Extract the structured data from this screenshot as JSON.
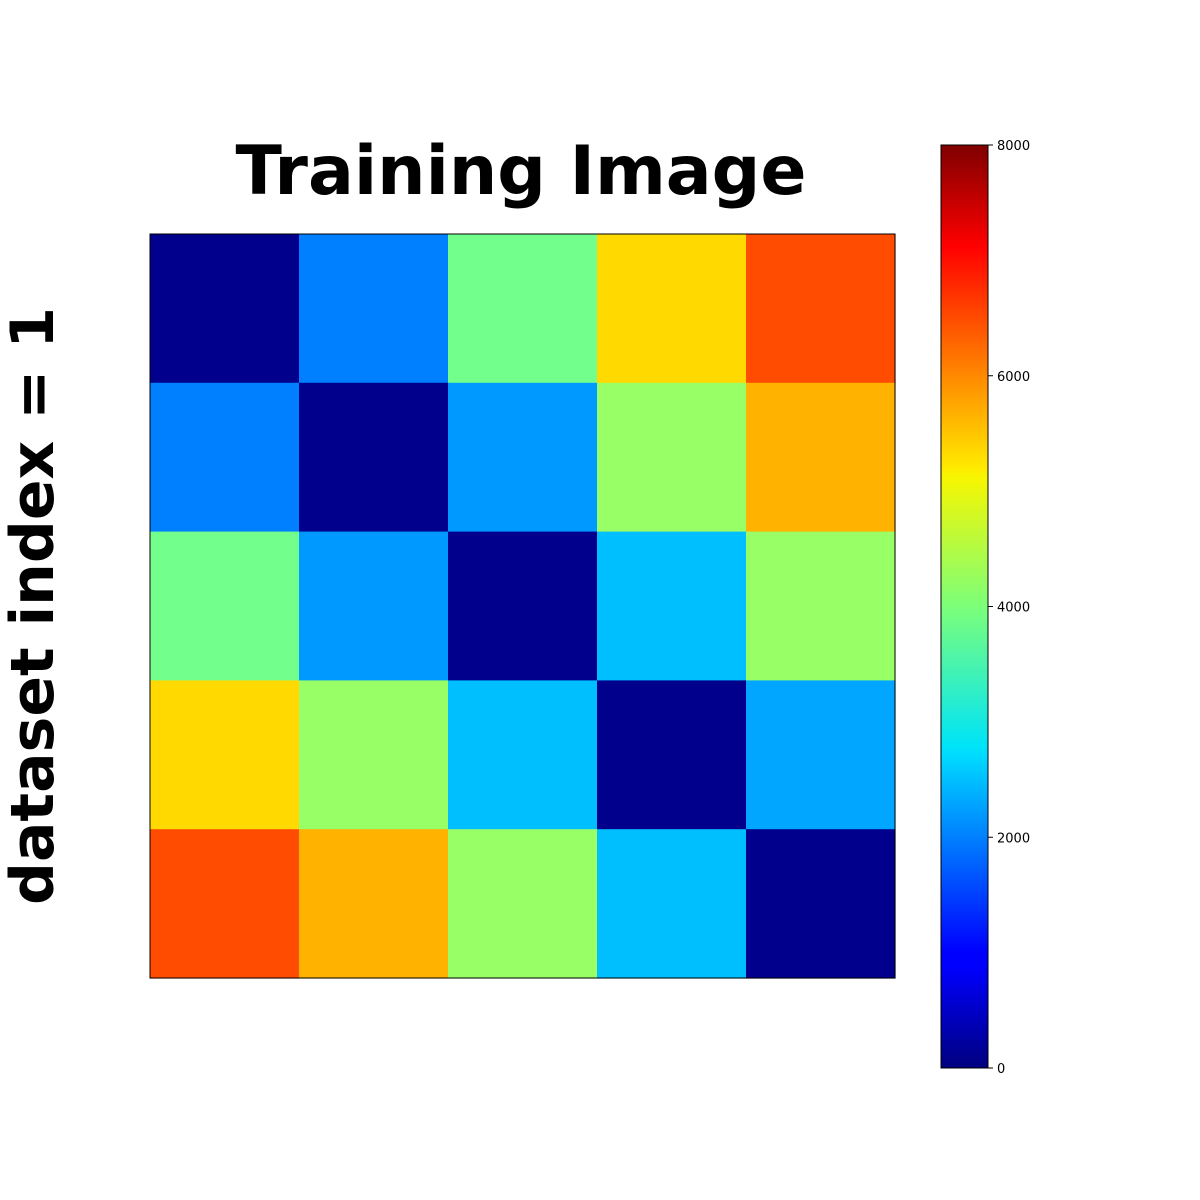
{
  "chart_data": {
    "type": "heatmap",
    "title": "Training Image",
    "ylabel": "dataset index = 1",
    "xlabel": "",
    "rows": 5,
    "cols": 5,
    "values": [
      [
        100,
        2000,
        3900,
        5300,
        6400
      ],
      [
        2000,
        100,
        2200,
        4200,
        5600
      ],
      [
        3900,
        2200,
        100,
        2500,
        4200
      ],
      [
        5300,
        4200,
        2500,
        100,
        2300
      ],
      [
        6400,
        5600,
        4200,
        2500,
        100
      ]
    ],
    "colormap": "jet",
    "vmin": 0,
    "vmax": 8000,
    "colorbar": {
      "ticks": [
        0,
        2000,
        4000,
        6000,
        8000
      ],
      "tick_labels": [
        "0",
        "2000",
        "4000",
        "6000",
        "8000"
      ]
    },
    "grid": false,
    "axis_ticks_visible": false
  }
}
